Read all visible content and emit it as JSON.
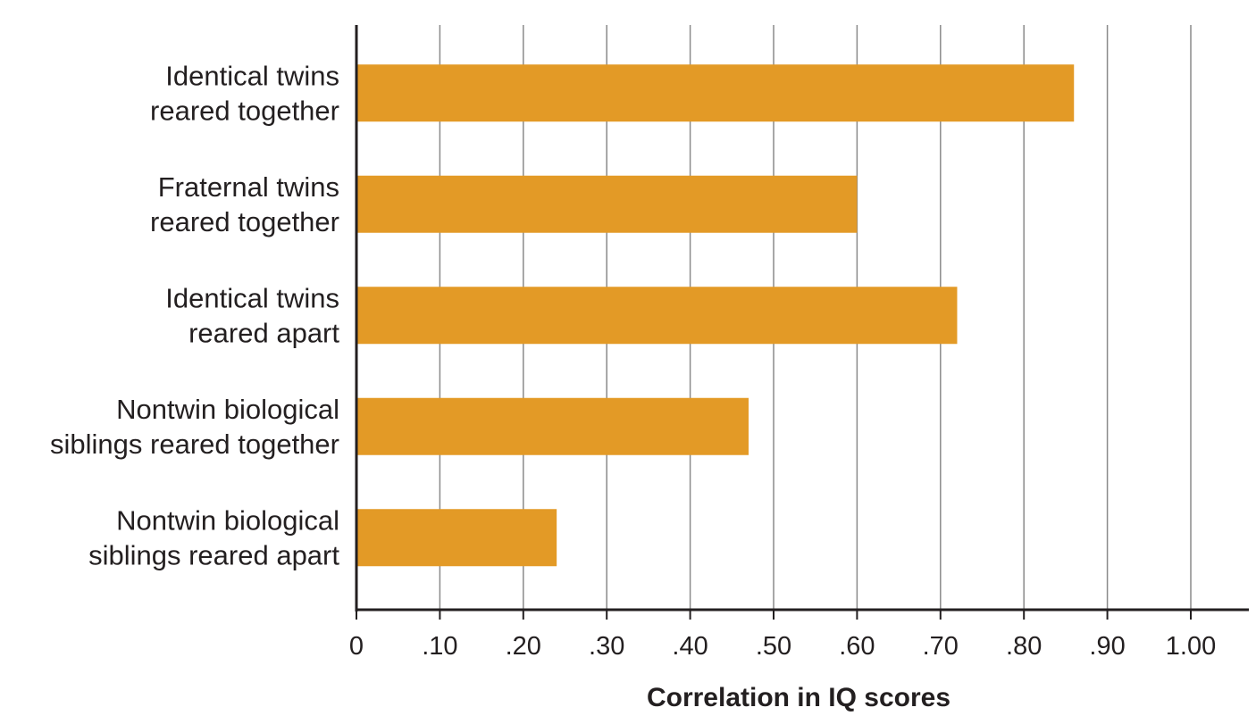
{
  "chart_data": {
    "type": "bar",
    "orientation": "horizontal",
    "categories": [
      [
        "Identical twins",
        "reared together"
      ],
      [
        "Fraternal twins",
        "reared together"
      ],
      [
        "Identical twins",
        "reared apart"
      ],
      [
        "Nontwin biological",
        "siblings reared together"
      ],
      [
        "Nontwin biological",
        "siblings reared apart"
      ]
    ],
    "values": [
      0.86,
      0.6,
      0.72,
      0.47,
      0.24
    ],
    "xlabel": "Correlation in IQ scores",
    "ylabel": "",
    "xlim": [
      0,
      1.06
    ],
    "x_ticks": [
      0,
      0.1,
      0.2,
      0.3,
      0.4,
      0.5,
      0.6,
      0.7,
      0.8,
      0.9,
      1.0
    ],
    "x_tick_labels": [
      "0",
      ".10",
      ".20",
      ".30",
      ".40",
      ".50",
      ".60",
      ".70",
      ".80",
      ".90",
      "1.00"
    ],
    "grid": "vertical",
    "legend": "none",
    "colors": {
      "bar": "#e39a26",
      "grid": "#8a8a8a",
      "axis": "#231f20",
      "text": "#231f20"
    }
  }
}
